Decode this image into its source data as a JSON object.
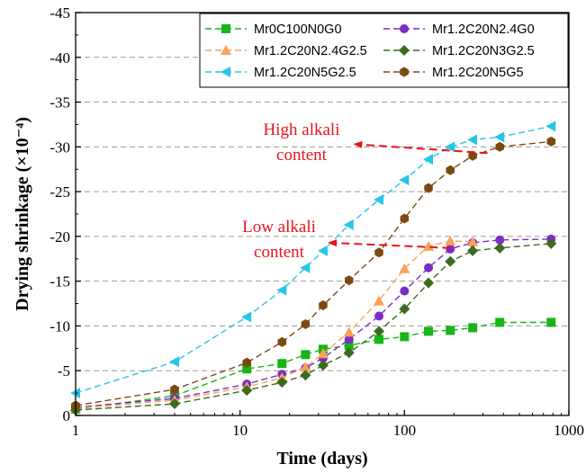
{
  "chart_data": {
    "type": "line",
    "xlabel": "Time (days)",
    "ylabel": "Drying shrinkage (×10⁻⁴)",
    "x_scale": "log",
    "xlim": [
      1,
      1000
    ],
    "ylim": [
      0,
      -45
    ],
    "x_ticks": [
      "1",
      "10",
      "100",
      "1000"
    ],
    "y_ticks": [
      "0",
      "-5",
      "-10",
      "-15",
      "-20",
      "-25",
      "-30",
      "-35",
      "-40",
      "-45"
    ],
    "grid": "horizontal dashed",
    "legend_position": "top-right",
    "series": [
      {
        "name": "Mr0C100N0G0",
        "color": "#18b418",
        "marker": "square",
        "x": [
          1,
          4,
          11,
          18,
          25,
          32,
          46,
          70,
          100,
          140,
          190,
          260,
          380,
          780
        ],
        "y": [
          -0.7,
          -2.2,
          -5.2,
          -5.8,
          -6.8,
          -7.4,
          -7.8,
          -8.5,
          -8.8,
          -9.4,
          -9.5,
          -9.8,
          -10.4,
          -10.4
        ]
      },
      {
        "name": "Mr1.2C20N2.4G0",
        "color": "#7a2ec2",
        "marker": "circle",
        "x": [
          1,
          4,
          11,
          18,
          25,
          32,
          46,
          70,
          100,
          140,
          190,
          260,
          380,
          780
        ],
        "y": [
          -0.9,
          -1.9,
          -3.5,
          -4.6,
          -5.3,
          -6.4,
          -8.5,
          -11.1,
          -13.9,
          -16.5,
          -18.6,
          -19.3,
          -19.6,
          -19.7
        ]
      },
      {
        "name": "Mr1.2C20N2.4G2.5",
        "color": "#f7a15c",
        "marker": "triangle-up",
        "x": [
          1,
          4,
          11,
          18,
          25,
          32,
          46,
          70,
          100,
          140,
          190,
          260
        ],
        "y": [
          -0.8,
          -1.7,
          -3.2,
          -4.2,
          -5.4,
          -6.9,
          -9.3,
          -12.8,
          -16.4,
          -18.9,
          -19.5,
          -19.4
        ]
      },
      {
        "name": "Mr1.2C20N3G2.5",
        "color": "#3e6b1e",
        "marker": "diamond",
        "x": [
          1,
          4,
          11,
          18,
          25,
          32,
          46,
          70,
          100,
          140,
          190,
          260,
          380,
          780
        ],
        "y": [
          -0.6,
          -1.3,
          -2.8,
          -3.7,
          -4.5,
          -5.6,
          -7.0,
          -9.4,
          -11.9,
          -14.8,
          -17.2,
          -18.4,
          -18.7,
          -19.2
        ]
      },
      {
        "name": "Mr1.2C20N5G2.5",
        "color": "#27c6e6",
        "marker": "triangle-left",
        "x": [
          1,
          4,
          11,
          18,
          25,
          32,
          46,
          70,
          100,
          140,
          190,
          260,
          380,
          780
        ],
        "y": [
          -2.5,
          -6.0,
          -11.0,
          -14.0,
          -16.5,
          -18.4,
          -21.3,
          -24.1,
          -26.3,
          -28.6,
          -30.0,
          -30.8,
          -31.1,
          -32.3
        ]
      },
      {
        "name": "Mr1.2C20N5G5",
        "color": "#7b4a10",
        "marker": "hexagon",
        "x": [
          1,
          4,
          11,
          18,
          25,
          32,
          46,
          70,
          100,
          140,
          190,
          260,
          380,
          780
        ],
        "y": [
          -1.1,
          -2.9,
          -5.9,
          -8.2,
          -10.2,
          -12.3,
          -15.1,
          -18.2,
          -22.0,
          -25.4,
          -27.4,
          -29.0,
          -30.0,
          -30.6
        ]
      }
    ],
    "annotations": [
      {
        "lines": [
          "High alkali",
          "content"
        ],
        "color": "#e8141c",
        "arrow_from": [
          320,
          -29.3
        ],
        "arrow_to": [
          50,
          -30.3
        ]
      },
      {
        "lines": [
          "Low alkali",
          "content"
        ],
        "color": "#e8141c",
        "arrow_from": [
          190,
          -18.7
        ],
        "arrow_to": [
          35,
          -19.3
        ]
      }
    ]
  }
}
